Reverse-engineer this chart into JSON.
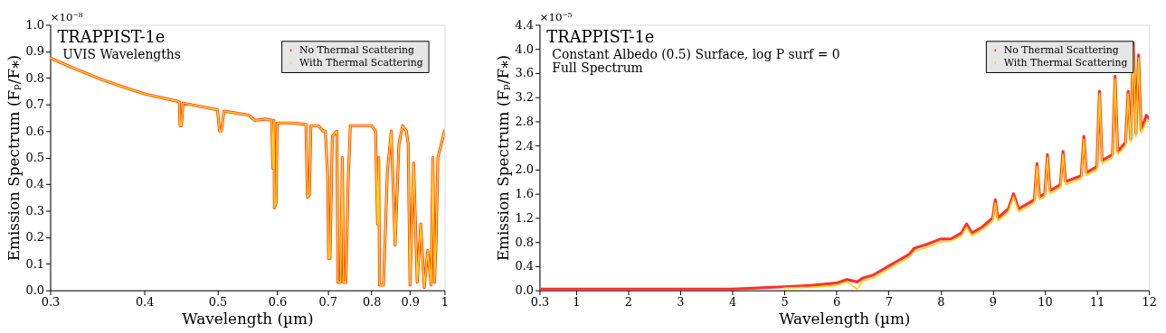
{
  "chart_data": [
    {
      "type": "line",
      "title": "TRAPPIST-1e",
      "subtitle": "UVIS Wavelengths",
      "annotations": [
        "×10⁻⁸"
      ],
      "xlabel": "Wavelength (µm)",
      "ylabel": "Emission Spectrum (Fₚ/F⁎)",
      "log": "x",
      "grid": false,
      "legend": "top right",
      "marker": "none",
      "line_style": "solid",
      "xlim": [
        0.3,
        1
      ],
      "xticks": [
        0.3,
        0.4,
        0.5,
        0.6,
        0.7,
        0.8,
        0.9,
        1
      ],
      "ylim": [
        0,
        1.0
      ],
      "yticks": [
        {
          "value": 0,
          "label": "0.0"
        },
        {
          "value": 0.1,
          "label": "0.1"
        },
        {
          "value": 0.2,
          "label": "0.2"
        },
        {
          "value": 0.3,
          "label": "0.3"
        },
        {
          "value": 0.4,
          "label": "0.4"
        },
        {
          "value": 0.5,
          "label": "0.5"
        },
        {
          "value": 0.6,
          "label": "0.6"
        },
        {
          "value": 0.7,
          "label": "0.7"
        },
        {
          "value": 0.8,
          "label": "0.8"
        },
        {
          "value": 0.9,
          "label": "0.9"
        },
        {
          "value": 1,
          "label": "1.0"
        }
      ],
      "x": [
        0.3,
        0.32,
        0.35,
        0.38,
        0.4,
        0.43,
        0.445,
        0.446,
        0.448,
        0.45,
        0.48,
        0.5,
        0.503,
        0.506,
        0.51,
        0.55,
        0.56,
        0.58,
        0.59,
        0.592,
        0.594,
        0.595,
        0.598,
        0.6,
        0.63,
        0.655,
        0.658,
        0.662,
        0.665,
        0.68,
        0.69,
        0.695,
        0.7,
        0.702,
        0.705,
        0.71,
        0.72,
        0.722,
        0.728,
        0.732,
        0.735,
        0.74,
        0.745,
        0.75,
        0.78,
        0.8,
        0.81,
        0.815,
        0.818,
        0.82,
        0.83,
        0.84,
        0.85,
        0.86,
        0.87,
        0.88,
        0.89,
        0.895,
        0.9,
        0.91,
        0.92,
        0.93,
        0.94,
        0.95,
        0.96,
        0.965,
        0.97,
        0.975,
        0.98,
        0.99,
        1.0
      ],
      "series": [
        {
          "name": "No Thermal Scattering",
          "color": "#ff3030",
          "values": [
            0.875,
            0.84,
            0.795,
            0.76,
            0.74,
            0.72,
            0.71,
            0.62,
            0.62,
            0.705,
            0.69,
            0.68,
            0.6,
            0.6,
            0.675,
            0.66,
            0.64,
            0.645,
            0.64,
            0.46,
            0.64,
            0.31,
            0.33,
            0.63,
            0.63,
            0.625,
            0.35,
            0.36,
            0.62,
            0.62,
            0.6,
            0.6,
            0.43,
            0.12,
            0.12,
            0.58,
            0.6,
            0.03,
            0.03,
            0.5,
            0.03,
            0.03,
            0.4,
            0.62,
            0.62,
            0.62,
            0.6,
            0.25,
            0.5,
            0.02,
            0.02,
            0.45,
            0.6,
            0.17,
            0.55,
            0.62,
            0.6,
            0.55,
            0.02,
            0.48,
            0.03,
            0.25,
            0.01,
            0.15,
            0.02,
            0.5,
            0.03,
            0.2,
            0.5,
            0.55,
            0.6
          ]
        },
        {
          "name": "With Thermal Scattering",
          "color": "#ffd700",
          "values": [
            0.875,
            0.84,
            0.795,
            0.76,
            0.74,
            0.72,
            0.71,
            0.62,
            0.62,
            0.705,
            0.69,
            0.68,
            0.6,
            0.6,
            0.675,
            0.66,
            0.64,
            0.645,
            0.64,
            0.46,
            0.64,
            0.31,
            0.33,
            0.63,
            0.63,
            0.625,
            0.35,
            0.36,
            0.62,
            0.62,
            0.6,
            0.6,
            0.43,
            0.12,
            0.12,
            0.58,
            0.6,
            0.03,
            0.03,
            0.5,
            0.03,
            0.03,
            0.4,
            0.62,
            0.62,
            0.62,
            0.6,
            0.25,
            0.5,
            0.02,
            0.02,
            0.45,
            0.6,
            0.17,
            0.55,
            0.62,
            0.6,
            0.55,
            0.02,
            0.48,
            0.03,
            0.25,
            0.01,
            0.15,
            0.02,
            0.5,
            0.03,
            0.2,
            0.5,
            0.55,
            0.6
          ]
        }
      ]
    },
    {
      "type": "line",
      "title": "TRAPPIST-1e",
      "subtitle": "Constant Albedo (0.5) Surface, log P surf = 0\nFull Spectrum",
      "annotations": [
        "×10⁻⁵"
      ],
      "xlabel": "Wavelength (µm)",
      "ylabel": "Emission Spectrum (Fₚ/F⁎)",
      "grid": false,
      "legend": "top right",
      "marker": "none",
      "line_style": "solid",
      "xlim": [
        0.3,
        12
      ],
      "xticks": [
        0.3,
        1,
        2,
        3,
        4,
        5,
        6,
        7,
        8,
        9,
        10,
        11,
        12
      ],
      "ylim": [
        0,
        4.4
      ],
      "yticks": [
        {
          "value": 0,
          "label": "0.0"
        },
        0.4,
        0.8,
        1.2,
        1.6,
        {
          "value": 2,
          "label": "2.0"
        },
        2.4,
        2.8,
        3.2,
        3.6,
        {
          "value": 4,
          "label": "4.0"
        },
        4.4
      ],
      "x": [
        0.3,
        4,
        5,
        5.5,
        6,
        6.2,
        6.4,
        6.5,
        6.7,
        6.9,
        7.0,
        7.2,
        7.4,
        7.5,
        7.7,
        8.0,
        8.2,
        8.4,
        8.5,
        8.6,
        8.8,
        9.0,
        9.05,
        9.1,
        9.3,
        9.4,
        9.5,
        9.8,
        9.85,
        9.9,
        10.0,
        10.05,
        10.1,
        10.3,
        10.35,
        10.4,
        10.7,
        10.75,
        10.8,
        11.0,
        11.05,
        11.1,
        11.3,
        11.35,
        11.4,
        11.55,
        11.6,
        11.65,
        11.7,
        11.75,
        11.8,
        11.85,
        11.95,
        12
      ],
      "series": [
        {
          "name": "No Thermal Scattering",
          "color": "#ff3030",
          "values": [
            0.02,
            0.02,
            0.06,
            0.08,
            0.12,
            0.18,
            0.14,
            0.2,
            0.25,
            0.35,
            0.4,
            0.5,
            0.6,
            0.7,
            0.75,
            0.85,
            0.85,
            0.95,
            1.1,
            0.95,
            1.05,
            1.2,
            1.5,
            1.2,
            1.35,
            1.6,
            1.35,
            1.5,
            2.1,
            1.55,
            1.6,
            2.25,
            1.65,
            1.75,
            2.3,
            1.8,
            1.9,
            2.55,
            1.95,
            2.05,
            3.3,
            2.15,
            2.25,
            3.55,
            2.3,
            2.45,
            3.3,
            2.5,
            4.1,
            2.6,
            3.9,
            2.65,
            2.9,
            2.85
          ]
        },
        {
          "name": "With Thermal Scattering",
          "color": "#ffd700",
          "values": [
            null,
            null,
            0.04,
            0.05,
            0.08,
            0.14,
            0.02,
            0.15,
            0.2,
            0.3,
            0.35,
            0.45,
            0.55,
            0.65,
            0.7,
            0.8,
            0.82,
            0.9,
            1.05,
            0.9,
            1.0,
            1.15,
            1.45,
            1.15,
            1.3,
            1.55,
            1.3,
            1.45,
            2.05,
            1.5,
            1.55,
            2.2,
            1.6,
            1.7,
            2.25,
            1.75,
            1.85,
            2.5,
            1.9,
            2.0,
            3.25,
            2.1,
            2.2,
            3.5,
            2.25,
            2.4,
            3.25,
            2.45,
            4.05,
            2.55,
            3.85,
            2.6,
            2.8,
            2.8
          ]
        }
      ]
    }
  ]
}
